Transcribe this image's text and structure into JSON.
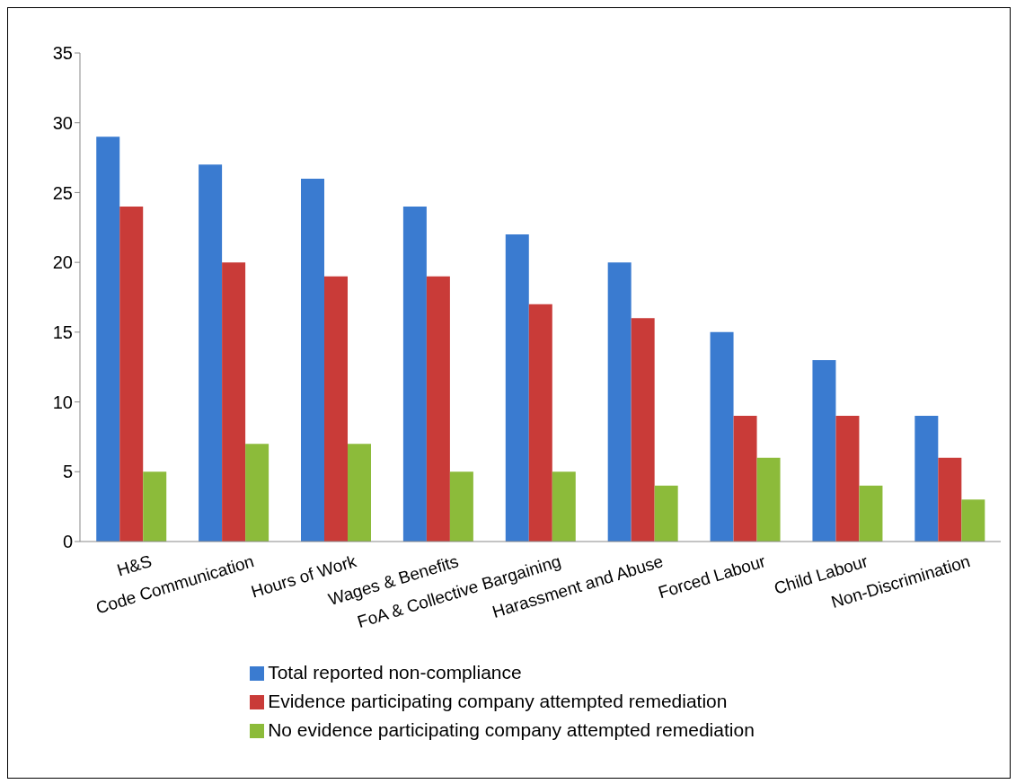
{
  "chart_data": {
    "type": "bar",
    "categories": [
      "H&S",
      "Code Communication",
      "Hours of Work",
      "Wages & Benefits",
      "FoA & Collective Bargaining",
      "Harassment and Abuse",
      "Forced Labour",
      "Child Labour",
      "Non-Discrimination"
    ],
    "series": [
      {
        "name": "Total reported non-compliance",
        "color": "#3a7bd0",
        "values": [
          29,
          27,
          26,
          24,
          22,
          20,
          15,
          13,
          9
        ]
      },
      {
        "name": "Evidence participating company attempted remediation",
        "color": "#c93b38",
        "values": [
          24,
          20,
          19,
          19,
          17,
          16,
          9,
          9,
          6
        ]
      },
      {
        "name": "No evidence participating company attempted remediation",
        "color": "#8cbb3a",
        "values": [
          5,
          7,
          7,
          5,
          5,
          4,
          6,
          4,
          3
        ]
      }
    ],
    "ylim": [
      0,
      35
    ],
    "yticks": [
      0,
      5,
      10,
      15,
      20,
      25,
      30,
      35
    ],
    "grid": false,
    "legend": "bottom"
  }
}
